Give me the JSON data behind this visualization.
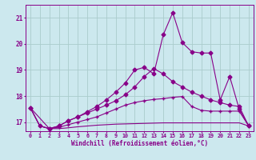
{
  "xlabel": "Windchill (Refroidissement éolien,°C)",
  "bg_color": "#cce8ee",
  "grid_color": "#aacccc",
  "line_color": "#880088",
  "xlim": [
    -0.5,
    23.5
  ],
  "ylim": [
    16.65,
    21.5
  ],
  "yticks": [
    17,
    18,
    19,
    20,
    21
  ],
  "xticks": [
    0,
    1,
    2,
    3,
    4,
    5,
    6,
    7,
    8,
    9,
    10,
    11,
    12,
    13,
    14,
    15,
    16,
    17,
    18,
    19,
    20,
    21,
    22,
    23
  ],
  "line1_x": [
    0,
    1,
    2,
    3,
    4,
    5,
    6,
    7,
    8,
    9,
    10,
    11,
    12,
    13,
    14,
    15,
    16,
    17,
    18,
    19,
    20,
    21,
    22,
    23
  ],
  "line1_y": [
    17.55,
    16.85,
    16.75,
    16.75,
    16.78,
    16.82,
    16.85,
    16.88,
    16.9,
    16.92,
    16.93,
    16.94,
    16.95,
    16.96,
    16.97,
    16.97,
    16.97,
    16.97,
    16.97,
    16.97,
    16.97,
    16.97,
    16.97,
    16.85
  ],
  "line2_x": [
    0,
    1,
    2,
    3,
    4,
    5,
    6,
    7,
    8,
    9,
    10,
    11,
    12,
    13,
    14,
    15,
    16,
    17,
    18,
    19,
    20,
    21,
    22,
    23
  ],
  "line2_y": [
    17.55,
    16.85,
    16.75,
    16.8,
    16.9,
    17.0,
    17.1,
    17.2,
    17.35,
    17.5,
    17.65,
    17.75,
    17.82,
    17.87,
    17.9,
    17.95,
    17.98,
    17.6,
    17.45,
    17.42,
    17.42,
    17.42,
    17.42,
    16.85
  ],
  "line3_x": [
    0,
    2,
    3,
    4,
    5,
    6,
    7,
    8,
    9,
    10,
    11,
    12,
    13,
    14,
    15,
    16,
    17,
    18,
    19,
    20,
    21,
    22,
    23
  ],
  "line3_y": [
    17.55,
    16.75,
    16.85,
    17.05,
    17.2,
    17.35,
    17.5,
    17.65,
    17.82,
    18.05,
    18.35,
    18.75,
    19.05,
    18.85,
    18.55,
    18.35,
    18.15,
    18.0,
    17.85,
    17.75,
    17.65,
    17.6,
    16.85
  ],
  "line4_x": [
    0,
    1,
    2,
    3,
    4,
    5,
    6,
    7,
    8,
    9,
    10,
    11,
    12,
    13,
    14,
    15,
    16,
    17,
    18,
    19,
    20,
    21,
    22,
    23
  ],
  "line4_y": [
    17.55,
    16.85,
    16.75,
    16.85,
    17.05,
    17.2,
    17.4,
    17.6,
    17.85,
    18.15,
    18.5,
    19.0,
    19.1,
    18.85,
    20.35,
    21.2,
    20.05,
    19.7,
    19.65,
    19.65,
    17.85,
    18.75,
    17.5,
    16.85
  ]
}
